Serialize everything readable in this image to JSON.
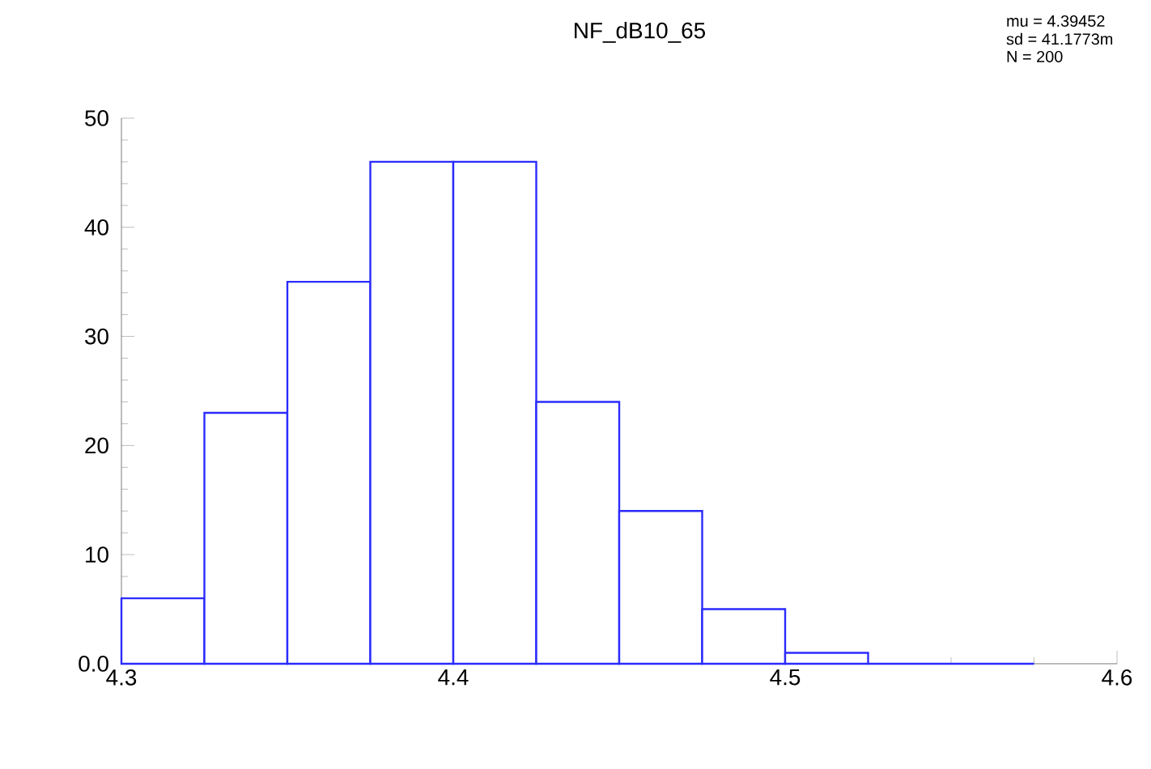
{
  "chart_data": {
    "type": "histogram",
    "title": "NF_dB10_65",
    "annotations": [
      "mu = 4.39452",
      "sd = 41.1773m",
      "N = 200"
    ],
    "bins": [
      4.3,
      4.325,
      4.35,
      4.375,
      4.4,
      4.425,
      4.45,
      4.475,
      4.5,
      4.525,
      4.55,
      4.575
    ],
    "values": [
      6,
      23,
      35,
      46,
      46,
      24,
      14,
      5,
      1,
      0,
      0
    ],
    "color": "#2b2bff",
    "xlim": [
      4.3,
      4.6
    ],
    "xticks": [
      4.3,
      4.4,
      4.5,
      4.6
    ],
    "ylim": [
      0,
      50
    ],
    "yticks": [
      {
        "value": 0,
        "label": "0.0"
      },
      10,
      20,
      30,
      40,
      50
    ]
  }
}
